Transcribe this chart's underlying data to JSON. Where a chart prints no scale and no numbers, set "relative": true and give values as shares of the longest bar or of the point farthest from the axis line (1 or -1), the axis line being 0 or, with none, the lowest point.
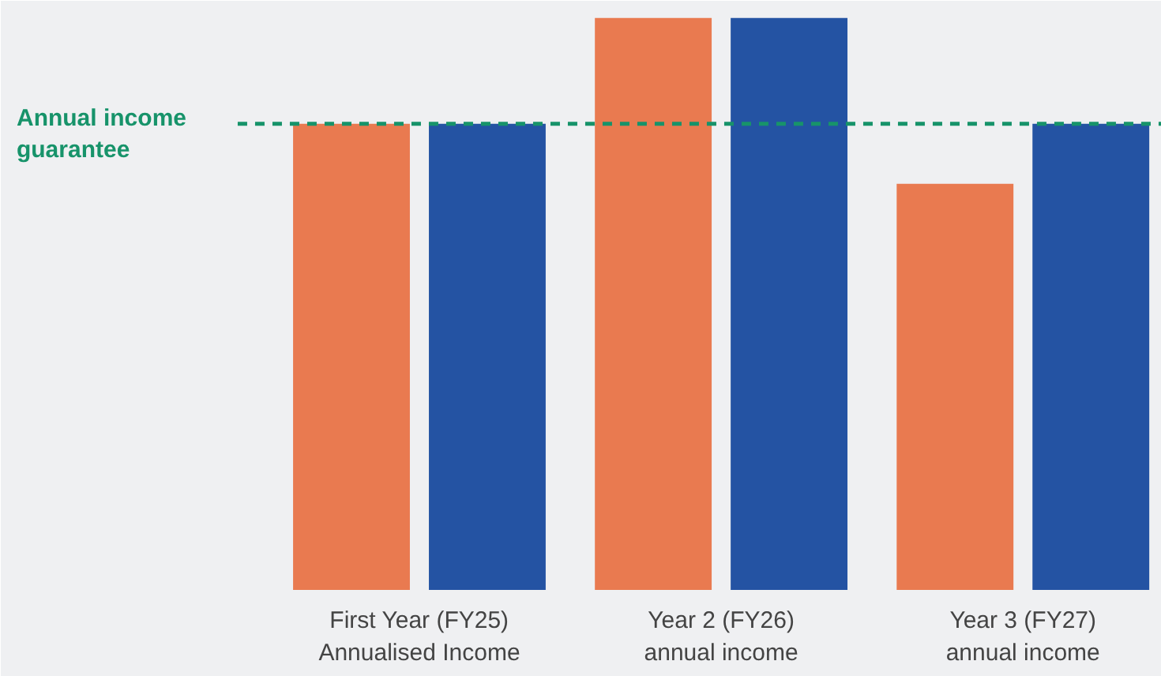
{
  "chart_data": {
    "type": "bar",
    "relative": true,
    "categories": [
      "First Year (FY25)\nAnnualised Income",
      "Year 2 (FY26)\nannual income",
      "Year 3 (FY27)\nannual income"
    ],
    "series": [
      {
        "color": "#e97a50",
        "values": [
          0.815,
          1,
          0.71
        ]
      },
      {
        "color": "#2453a3",
        "values": [
          0.815,
          1,
          0.815
        ]
      }
    ],
    "ref_lines": [
      {
        "axis": "y",
        "value": 0.815,
        "label": "Annual income\nguarantee",
        "color": "#17936a",
        "line_style": "dashed"
      }
    ],
    "grid": false
  }
}
